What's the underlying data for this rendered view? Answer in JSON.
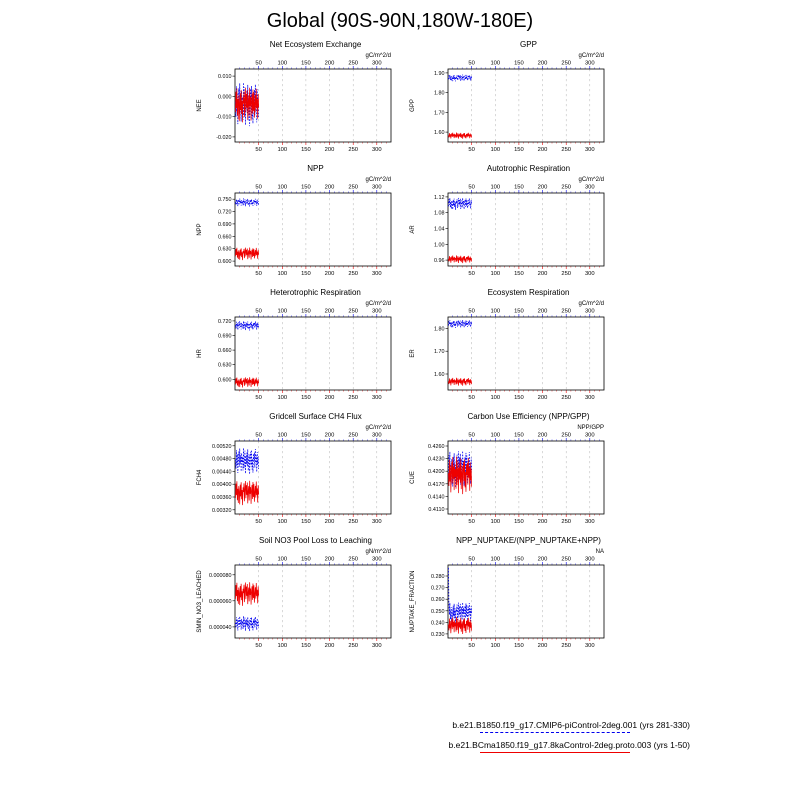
{
  "title": "Global (90S-90N,180W-180E)",
  "legend": [
    {
      "label": "b.e21.B1850.f19_g17.CMIP6-piControl-2deg.001 (yrs 281-330)",
      "color": "#0000ee",
      "style": "dashed"
    },
    {
      "label": "b.e21.BCma1850.f19_g17.8kaControl-2deg.proto.003 (yrs 1-50)",
      "color": "#ee0000",
      "style": "solid"
    }
  ],
  "chart_data": {
    "type": "line",
    "colors": {
      "blue": "#0000ee",
      "red": "#ee0000",
      "grid": "#b3b3b3",
      "axis": "#000000"
    },
    "xlim": [
      0,
      330
    ],
    "xticks": [
      50,
      100,
      150,
      200,
      250,
      300
    ],
    "x_description": "years (data span years 1-50)",
    "grid": "dashed-vertical",
    "noise": {
      "A": [
        0.12,
        -0.55,
        0.81,
        -0.32,
        0.52,
        -0.88,
        0.21,
        0.72,
        -0.41,
        0.95,
        -0.18,
        0.44,
        -0.76,
        0.6,
        -0.08,
        0.33,
        -0.69,
        0.98,
        -0.5,
        0.15,
        0.78,
        -0.92,
        0.4,
        -0.22,
        0.63,
        -0.38,
        0.88,
        -0.71,
        0.1,
        0.5,
        -0.97,
        0.28,
        0.7,
        -0.3,
        0.83,
        -0.62,
        0.18,
        -0.85,
        0.55,
        0.02,
        0.65,
        -0.48,
        0.9,
        -0.12,
        0.42,
        -0.8,
        0.68,
        -0.25,
        0.35,
        -0.58
      ],
      "B": [
        -0.42,
        0.7,
        -0.2,
        0.88,
        -0.6,
        0.3,
        -0.82,
        0.5,
        0.08,
        -0.92,
        0.62,
        -0.3,
        0.8,
        -0.52,
        0.2,
        -0.98,
        0.4,
        0.05,
        0.72,
        -0.68,
        0.3,
        0.9,
        -0.44,
        0.58,
        -0.18,
        0.78,
        -0.84,
        0.12,
        0.5,
        -0.62,
        0.92,
        -0.1,
        0.42,
        -0.88,
        0.22,
        0.6,
        -0.5,
        0.82,
        -0.35,
        0.68,
        -0.72,
        0.02,
        0.52,
        -0.4,
        0.86,
        -0.2,
        0.32,
        -0.78,
        0.58,
        -0.15
      ]
    },
    "panels": [
      {
        "title": "Net Ecosystem Exchange",
        "ylabel": "NEE",
        "unit": "gC/m^2/d",
        "ylim": [
          -0.0225,
          0.0135
        ],
        "yticks": [
          {
            "v": 0.01,
            "label": "0.010"
          },
          {
            "v": 0.0,
            "label": "0.000"
          },
          {
            "v": -0.01,
            "label": "-0.010"
          },
          {
            "v": -0.02,
            "label": "-0.020"
          }
        ],
        "series": [
          {
            "name": "picontrol",
            "color": "blue",
            "dashed": true,
            "mean": -0.004,
            "amp": 0.011,
            "noise": "A"
          },
          {
            "name": "8kacontrol",
            "color": "red",
            "dashed": false,
            "mean": -0.004,
            "amp": 0.009,
            "noise": "B"
          }
        ]
      },
      {
        "title": "GPP",
        "ylabel": "GPP",
        "unit": "gC/m^2/d",
        "ylim": [
          1.55,
          1.92
        ],
        "yticks": [
          {
            "v": 1.9,
            "label": "1.90"
          },
          {
            "v": 1.8,
            "label": "1.80"
          },
          {
            "v": 1.7,
            "label": "1.70"
          },
          {
            "v": 1.6,
            "label": "1.60"
          }
        ],
        "series": [
          {
            "name": "picontrol",
            "color": "blue",
            "dashed": true,
            "mean": 1.875,
            "amp": 0.018,
            "noise": "B"
          },
          {
            "name": "8kacontrol",
            "color": "red",
            "dashed": false,
            "mean": 1.582,
            "amp": 0.016,
            "noise": "A"
          }
        ]
      },
      {
        "title": "NPP",
        "ylabel": "NPP",
        "unit": "gC/m^2/d",
        "ylim": [
          0.588,
          0.765
        ],
        "yticks": [
          {
            "v": 0.75,
            "label": "0.750"
          },
          {
            "v": 0.72,
            "label": "0.720"
          },
          {
            "v": 0.69,
            "label": "0.690"
          },
          {
            "v": 0.66,
            "label": "0.660"
          },
          {
            "v": 0.63,
            "label": "0.630"
          },
          {
            "v": 0.6,
            "label": "0.600"
          }
        ],
        "series": [
          {
            "name": "picontrol",
            "color": "blue",
            "dashed": true,
            "mean": 0.742,
            "amp": 0.01,
            "noise": "A"
          },
          {
            "name": "8kacontrol",
            "color": "red",
            "dashed": false,
            "mean": 0.618,
            "amp": 0.016,
            "noise": "B"
          }
        ]
      },
      {
        "title": "Autotrophic Respiration",
        "ylabel": "AR",
        "unit": "gC/m^2/d",
        "ylim": [
          0.945,
          1.13
        ],
        "yticks": [
          {
            "v": 1.12,
            "label": "1.12"
          },
          {
            "v": 1.08,
            "label": "1.08"
          },
          {
            "v": 1.04,
            "label": "1.04"
          },
          {
            "v": 1.0,
            "label": "1.00"
          },
          {
            "v": 0.96,
            "label": "0.96"
          }
        ],
        "series": [
          {
            "name": "picontrol",
            "color": "blue",
            "dashed": true,
            "mean": 1.103,
            "amp": 0.016,
            "noise": "B"
          },
          {
            "name": "8kacontrol",
            "color": "red",
            "dashed": false,
            "mean": 0.962,
            "amp": 0.01,
            "noise": "A"
          }
        ]
      },
      {
        "title": "Heterotrophic Respiration",
        "ylabel": "HR",
        "unit": "gC/m^2/d",
        "ylim": [
          0.578,
          0.728
        ],
        "yticks": [
          {
            "v": 0.72,
            "label": "0.720"
          },
          {
            "v": 0.69,
            "label": "0.690"
          },
          {
            "v": 0.66,
            "label": "0.660"
          },
          {
            "v": 0.63,
            "label": "0.630"
          },
          {
            "v": 0.6,
            "label": "0.600"
          }
        ],
        "series": [
          {
            "name": "picontrol",
            "color": "blue",
            "dashed": true,
            "mean": 0.71,
            "amp": 0.01,
            "noise": "A"
          },
          {
            "name": "8kacontrol",
            "color": "red",
            "dashed": false,
            "mean": 0.594,
            "amp": 0.011,
            "noise": "B"
          }
        ]
      },
      {
        "title": "Ecosystem Respiration",
        "ylabel": "ER",
        "unit": "gC/m^2/d",
        "ylim": [
          1.53,
          1.85
        ],
        "yticks": [
          {
            "v": 1.8,
            "label": "1.80"
          },
          {
            "v": 1.7,
            "label": "1.70"
          },
          {
            "v": 1.6,
            "label": "1.60"
          }
        ],
        "series": [
          {
            "name": "picontrol",
            "color": "blue",
            "dashed": true,
            "mean": 1.82,
            "amp": 0.018,
            "noise": "B"
          },
          {
            "name": "8kacontrol",
            "color": "red",
            "dashed": false,
            "mean": 1.566,
            "amp": 0.018,
            "noise": "A"
          }
        ]
      },
      {
        "title": "Gridcell Surface CH4 Flux",
        "ylabel": "FCH4",
        "unit": "gC/m^2/d",
        "ylim": [
          0.00307,
          0.00535
        ],
        "yticks": [
          {
            "v": 0.0052,
            "label": "0.00520"
          },
          {
            "v": 0.0048,
            "label": "0.00480"
          },
          {
            "v": 0.0044,
            "label": "0.00440"
          },
          {
            "v": 0.004,
            "label": "0.00400"
          },
          {
            "v": 0.0036,
            "label": "0.00360"
          },
          {
            "v": 0.0032,
            "label": "0.00320"
          }
        ],
        "series": [
          {
            "name": "picontrol",
            "color": "blue",
            "dashed": true,
            "mean": 0.00472,
            "amp": 0.00042,
            "noise": "A"
          },
          {
            "name": "8kacontrol",
            "color": "red",
            "dashed": false,
            "mean": 0.00374,
            "amp": 0.0004,
            "noise": "B"
          }
        ]
      },
      {
        "title": "Carbon Use Efficiency (NPP/GPP)",
        "ylabel": "CUE",
        "unit": "NPP/GPP",
        "ylim": [
          0.4098,
          0.4272
        ],
        "yticks": [
          {
            "v": 0.426,
            "label": "0.4260"
          },
          {
            "v": 0.423,
            "label": "0.4230"
          },
          {
            "v": 0.42,
            "label": "0.4200"
          },
          {
            "v": 0.417,
            "label": "0.4170"
          },
          {
            "v": 0.414,
            "label": "0.4140"
          },
          {
            "v": 0.411,
            "label": "0.4110"
          }
        ],
        "series": [
          {
            "name": "picontrol",
            "color": "blue",
            "dashed": true,
            "mean": 0.4206,
            "amp": 0.0046,
            "noise": "B"
          },
          {
            "name": "8kacontrol",
            "color": "red",
            "dashed": false,
            "mean": 0.419,
            "amp": 0.0046,
            "noise": "A"
          }
        ]
      },
      {
        "title": "Soil NO3 Pool Loss to Leaching",
        "ylabel": "SMIN_NO3_LEACHED",
        "unit": "gN/m^2/d",
        "ylim": [
          3.15e-05,
          8.75e-05
        ],
        "yticks": [
          {
            "v": 8e-05,
            "label": "0.000080"
          },
          {
            "v": 6e-05,
            "label": "0.000060"
          },
          {
            "v": 4e-05,
            "label": "0.000040"
          }
        ],
        "series": [
          {
            "name": "picontrol",
            "color": "blue",
            "dashed": true,
            "mean": 4.25e-05,
            "amp": 6e-06,
            "noise": "A"
          },
          {
            "name": "8kacontrol",
            "color": "red",
            "dashed": false,
            "mean": 6.55e-05,
            "amp": 9.5e-06,
            "noise": "B"
          }
        ]
      },
      {
        "title": "NPP_NUPTAKE/(NPP_NUPTAKE+NPP)",
        "ylabel": "NUPTAKE_FRACTION",
        "unit": "NA",
        "ylim": [
          0.2265,
          0.2895
        ],
        "yticks": [
          {
            "v": 0.28,
            "label": "0.280"
          },
          {
            "v": 0.27,
            "label": "0.270"
          },
          {
            "v": 0.26,
            "label": "0.260"
          },
          {
            "v": 0.25,
            "label": "0.250"
          },
          {
            "v": 0.24,
            "label": "0.240"
          },
          {
            "v": 0.23,
            "label": "0.230"
          }
        ],
        "series": [
          {
            "name": "picontrol",
            "color": "blue",
            "dashed": true,
            "mean": 0.2485,
            "amp": 0.0095,
            "noise": "B",
            "overrides": {
              "0": 0.287
            }
          },
          {
            "name": "8kacontrol",
            "color": "red",
            "dashed": false,
            "mean": 0.2372,
            "amp": 0.0075,
            "noise": "A"
          }
        ]
      }
    ]
  }
}
